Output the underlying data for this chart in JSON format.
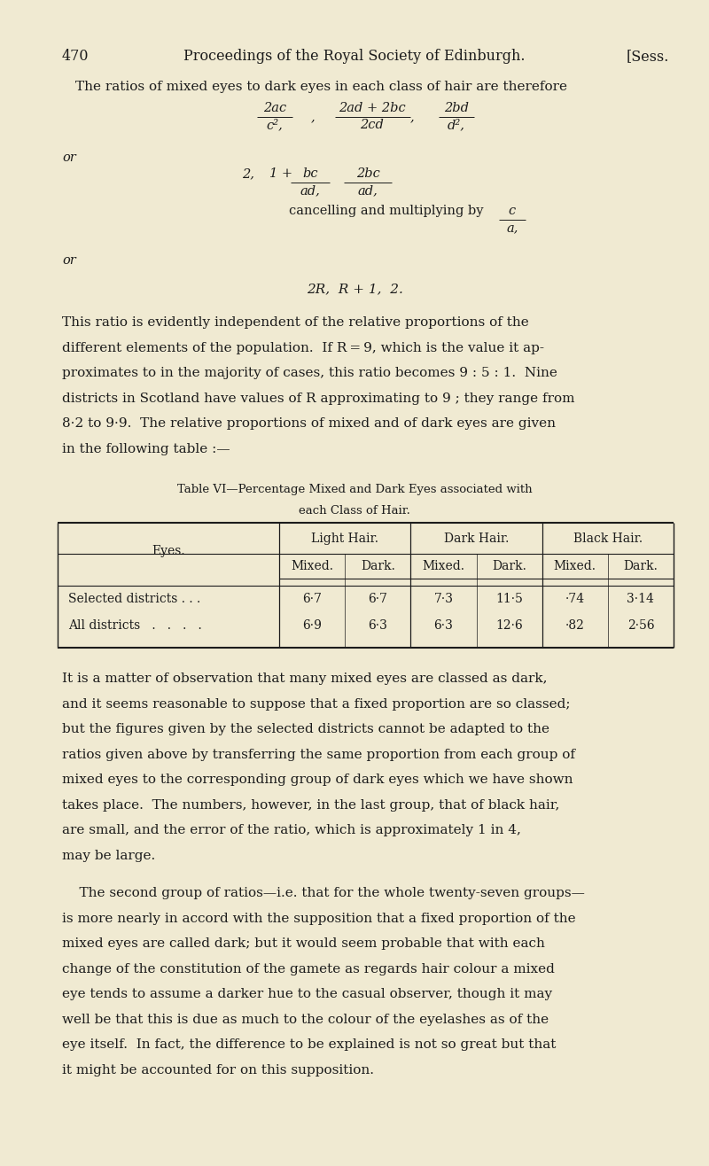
{
  "bg_color": "#f0ead2",
  "text_color": "#1c1c1c",
  "page_width": 8.0,
  "page_height": 13.16,
  "dpi": 100,
  "header_num": "470",
  "header_title": "Proceedings of the Royal Society of Edinburgh.",
  "header_right": "[Sess.",
  "para1": "The ratios of mixed eyes to dark eyes in each class of hair are therefore",
  "frac1_nums": [
    "2ac",
    "2ad + 2bc",
    "2bd"
  ],
  "frac1_dens": [
    "c²,",
    "2cd",
    "d²,"
  ],
  "frac1_commas": [
    ",",
    ","
  ],
  "or1": "or",
  "formula2_prefix": "2,",
  "formula2_mid": "1 +",
  "frac2a_num": "bc",
  "frac2a_den": "ad,",
  "frac2b_num": "2bc",
  "frac2b_den": "ad,",
  "cancel_text": "cancelling and multiplying by ",
  "frac3_num": "c",
  "frac3_den": "a,",
  "or2": "or",
  "formula3": "2R,  R + 1,  2.",
  "para2_lines": [
    "This ratio is evidently independent of the relative proportions of the",
    "different elements of the population.  If R = 9, which is the value it ap-",
    "proximates to in the majority of cases, this ratio becomes 9 : 5 : 1.  Nine",
    "districts in Scotland have values of R approximating to 9 ; they range from",
    "8·2 to 9·9.  The relative proportions of mixed and of dark eyes are given",
    "in the following table :—"
  ],
  "table_title1": "Table VI—Percentage Mixed and Dark Eyes associated with",
  "table_title2": "each Class of Hair.",
  "table_header_groups": [
    "Light Hair.",
    "Dark Hair.",
    "Black Hair."
  ],
  "table_col_label": "Eyes.",
  "table_sub_headers": [
    "Mixed.",
    "Dark.",
    "Mixed.",
    "Dark.",
    "Mixed.",
    "Dark."
  ],
  "table_rows": [
    [
      "Selected districts . . .",
      "6·7",
      "6·7",
      "7·3",
      "11·5",
      "·74",
      "3·14"
    ],
    [
      "All districts   .   .   .   .",
      "6·9",
      "6·3",
      "6·3",
      "12·6",
      "·82",
      "2·56"
    ]
  ],
  "para3_lines": [
    "It is a matter of observation that many mixed eyes are classed as dark,",
    "and it seems reasonable to suppose that a fixed proportion are so classed;",
    "but the figures given by the selected districts cannot be adapted to the",
    "ratios given above by transferring the same proportion from each group of",
    "mixed eyes to the corresponding group of dark eyes which we have shown",
    "takes place.  The numbers, however, in the last group, that of black hair,",
    "are small, and the error of the ratio, which is approximately 1 in 4,",
    "may be large."
  ],
  "para4_lines": [
    "    The second group of ratios—i.e. that for the whole twenty-seven groups—",
    "is more nearly in accord with the supposition that a fixed proportion of the",
    "mixed eyes are called dark; but it would seem probable that with each",
    "change of the constitution of the gamete as regards hair colour a mixed",
    "eye tends to assume a darker hue to the casual observer, though it may",
    "well be that this is due as much to the colour of the eyelashes as of the",
    "eye itself.  In fact, the difference to be explained is not so great but that",
    "it might be accounted for on this supposition."
  ]
}
